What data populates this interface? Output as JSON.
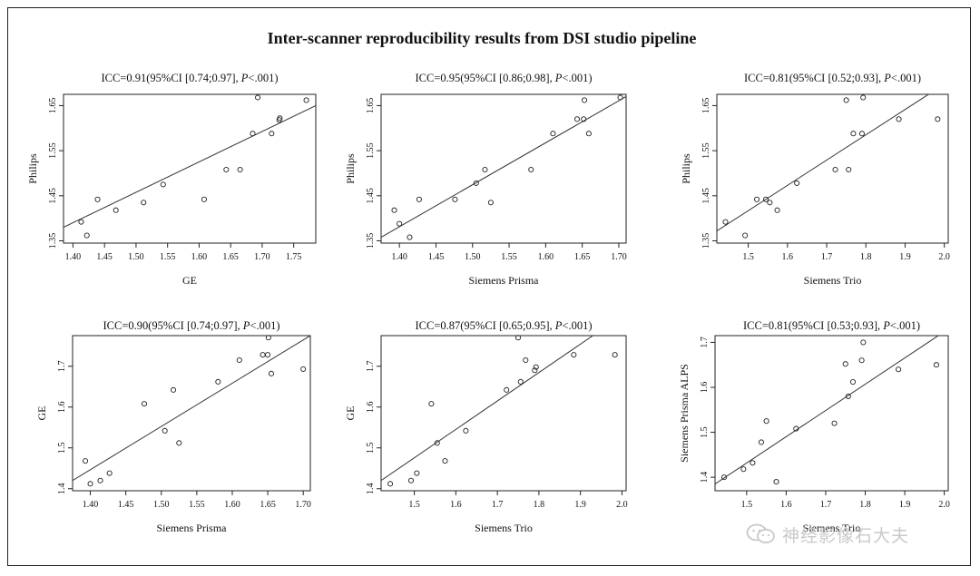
{
  "figure": {
    "title": "Inter-scanner reproducibility results from DSI studio pipeline",
    "watermark_text": "神经影像石大夫",
    "watermark_icon": "wechat-logo-icon"
  },
  "chart_data": [
    {
      "type": "scatter",
      "title": "ICC=0.91(95%CI [0.74;0.97], P<.001)",
      "title_parts": [
        "ICC=0.91(95%CI [0.74;0.97], ",
        "P",
        "<.001)"
      ],
      "xlabel": "GE",
      "ylabel": "Philips",
      "xlim": [
        1.385,
        1.785
      ],
      "ylim": [
        1.345,
        1.675
      ],
      "xticks": [
        1.4,
        1.45,
        1.5,
        1.55,
        1.6,
        1.65,
        1.7,
        1.75
      ],
      "yticks": [
        1.35,
        1.45,
        1.55,
        1.65
      ],
      "points": [
        [
          1.413,
          1.392
        ],
        [
          1.422,
          1.362
        ],
        [
          1.439,
          1.442
        ],
        [
          1.468,
          1.418
        ],
        [
          1.512,
          1.435
        ],
        [
          1.543,
          1.475
        ],
        [
          1.608,
          1.442
        ],
        [
          1.643,
          1.508
        ],
        [
          1.665,
          1.508
        ],
        [
          1.685,
          1.588
        ],
        [
          1.693,
          1.668
        ],
        [
          1.715,
          1.588
        ],
        [
          1.727,
          1.618
        ],
        [
          1.728,
          1.622
        ],
        [
          1.77,
          1.662
        ]
      ],
      "fit_line": [
        [
          1.385,
          1.38
        ],
        [
          1.785,
          1.65
        ]
      ],
      "grid": false
    },
    {
      "type": "scatter",
      "title": "ICC=0.95(95%CI [0.86;0.98], P<.001)",
      "title_parts": [
        "ICC=0.95(95%CI [0.86;0.98], ",
        "P",
        "<.001)"
      ],
      "xlabel": "Siemens Prisma",
      "ylabel": "Philips",
      "xlim": [
        1.375,
        1.71
      ],
      "ylim": [
        1.345,
        1.675
      ],
      "xticks": [
        1.4,
        1.45,
        1.5,
        1.55,
        1.6,
        1.65,
        1.7
      ],
      "yticks": [
        1.35,
        1.45,
        1.55,
        1.65
      ],
      "points": [
        [
          1.393,
          1.418
        ],
        [
          1.4,
          1.388
        ],
        [
          1.414,
          1.358
        ],
        [
          1.427,
          1.442
        ],
        [
          1.476,
          1.442
        ],
        [
          1.505,
          1.478
        ],
        [
          1.517,
          1.508
        ],
        [
          1.525,
          1.435
        ],
        [
          1.58,
          1.508
        ],
        [
          1.61,
          1.588
        ],
        [
          1.643,
          1.62
        ],
        [
          1.652,
          1.62
        ],
        [
          1.653,
          1.662
        ],
        [
          1.659,
          1.588
        ],
        [
          1.702,
          1.668
        ]
      ],
      "fit_line": [
        [
          1.375,
          1.358
        ],
        [
          1.71,
          1.67
        ]
      ],
      "grid": false
    },
    {
      "type": "scatter",
      "title": "ICC=0.81(95%CI [0.52;0.93], P<.001)",
      "title_parts": [
        "ICC=0.81(95%CI [0.52;0.93], ",
        "P",
        "<.001)"
      ],
      "xlabel": "Siemens Trio",
      "ylabel": "Philips",
      "xlim": [
        1.42,
        2.01
      ],
      "ylim": [
        1.345,
        1.675
      ],
      "xticks": [
        1.5,
        1.6,
        1.7,
        1.8,
        1.9,
        2.0
      ],
      "yticks": [
        1.35,
        1.45,
        1.55,
        1.65
      ],
      "points": [
        [
          1.442,
          1.392
        ],
        [
          1.492,
          1.362
        ],
        [
          1.522,
          1.442
        ],
        [
          1.545,
          1.442
        ],
        [
          1.555,
          1.435
        ],
        [
          1.574,
          1.418
        ],
        [
          1.624,
          1.478
        ],
        [
          1.722,
          1.508
        ],
        [
          1.75,
          1.662
        ],
        [
          1.756,
          1.508
        ],
        [
          1.768,
          1.588
        ],
        [
          1.79,
          1.588
        ],
        [
          1.793,
          1.668
        ],
        [
          1.884,
          1.62
        ],
        [
          1.983,
          1.62
        ]
      ],
      "fit_line": [
        [
          1.42,
          1.372
        ],
        [
          1.96,
          1.675
        ]
      ],
      "grid": false
    },
    {
      "type": "scatter",
      "title": "ICC=0.90(95%CI [0.74;0.97], P<.001)",
      "title_parts": [
        "ICC=0.90(95%CI [0.74;0.97], ",
        "P",
        "<.001)"
      ],
      "xlabel": "Siemens Prisma",
      "ylabel": "GE",
      "xlim": [
        1.375,
        1.71
      ],
      "ylim": [
        1.395,
        1.775
      ],
      "xticks": [
        1.4,
        1.45,
        1.5,
        1.55,
        1.6,
        1.65,
        1.7
      ],
      "yticks": [
        1.4,
        1.5,
        1.6,
        1.7
      ],
      "points": [
        [
          1.393,
          1.468
        ],
        [
          1.4,
          1.412
        ],
        [
          1.414,
          1.42
        ],
        [
          1.427,
          1.438
        ],
        [
          1.476,
          1.608
        ],
        [
          1.505,
          1.542
        ],
        [
          1.517,
          1.642
        ],
        [
          1.525,
          1.512
        ],
        [
          1.58,
          1.662
        ],
        [
          1.61,
          1.715
        ],
        [
          1.643,
          1.728
        ],
        [
          1.65,
          1.728
        ],
        [
          1.651,
          1.77
        ],
        [
          1.655,
          1.682
        ],
        [
          1.7,
          1.693
        ]
      ],
      "fit_line": [
        [
          1.375,
          1.42
        ],
        [
          1.71,
          1.775
        ]
      ],
      "grid": false
    },
    {
      "type": "scatter",
      "title": "ICC=0.87(95%CI [0.65;0.95], P<.001)",
      "title_parts": [
        "ICC=0.87(95%CI [0.65;0.95], ",
        "P",
        "<.001)"
      ],
      "xlabel": "Siemens Trio",
      "ylabel": "GE",
      "xlim": [
        1.42,
        2.01
      ],
      "ylim": [
        1.395,
        1.775
      ],
      "xticks": [
        1.5,
        1.6,
        1.7,
        1.8,
        1.9,
        2.0
      ],
      "yticks": [
        1.4,
        1.5,
        1.6,
        1.7
      ],
      "points": [
        [
          1.442,
          1.412
        ],
        [
          1.492,
          1.42
        ],
        [
          1.506,
          1.438
        ],
        [
          1.541,
          1.608
        ],
        [
          1.555,
          1.512
        ],
        [
          1.574,
          1.468
        ],
        [
          1.624,
          1.542
        ],
        [
          1.722,
          1.642
        ],
        [
          1.75,
          1.77
        ],
        [
          1.756,
          1.662
        ],
        [
          1.768,
          1.715
        ],
        [
          1.79,
          1.69
        ],
        [
          1.793,
          1.698
        ],
        [
          1.884,
          1.728
        ],
        [
          1.983,
          1.728
        ]
      ],
      "fit_line": [
        [
          1.42,
          1.42
        ],
        [
          1.93,
          1.775
        ]
      ],
      "grid": false
    },
    {
      "type": "scatter",
      "title": "ICC=0.81(95%CI [0.53;0.93], P<.001)",
      "title_parts": [
        "ICC=0.81(95%CI [0.53;0.93], ",
        "P",
        "<.001)"
      ],
      "xlabel": "Siemens Trio",
      "ylabel": "Siemens Prisma ALPS",
      "xlim": [
        1.42,
        2.01
      ],
      "ylim": [
        1.37,
        1.715
      ],
      "xticks": [
        1.5,
        1.6,
        1.7,
        1.8,
        1.9,
        2.0
      ],
      "yticks": [
        1.4,
        1.5,
        1.6,
        1.7
      ],
      "points": [
        [
          1.443,
          1.4
        ],
        [
          1.492,
          1.418
        ],
        [
          1.515,
          1.432
        ],
        [
          1.537,
          1.478
        ],
        [
          1.55,
          1.525
        ],
        [
          1.575,
          1.39
        ],
        [
          1.625,
          1.508
        ],
        [
          1.722,
          1.52
        ],
        [
          1.75,
          1.652
        ],
        [
          1.757,
          1.58
        ],
        [
          1.769,
          1.612
        ],
        [
          1.791,
          1.66
        ],
        [
          1.795,
          1.7
        ],
        [
          1.884,
          1.64
        ],
        [
          1.98,
          1.65
        ]
      ],
      "fit_line": [
        [
          1.42,
          1.385
        ],
        [
          1.985,
          1.715
        ]
      ],
      "grid": false
    }
  ]
}
